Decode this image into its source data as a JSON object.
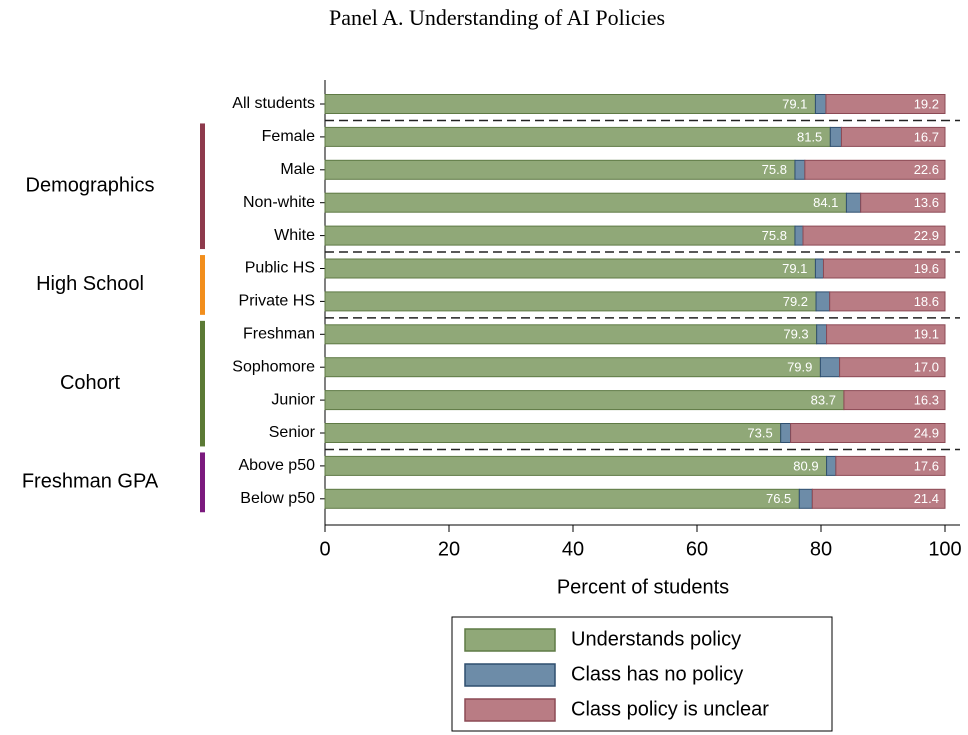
{
  "chart_data": {
    "type": "stacked-bar-horizontal",
    "title": "Panel A. Understanding of AI Policies",
    "xlabel": "Percent of students",
    "categories": [
      "All students",
      "Female",
      "Male",
      "Non-white",
      "White",
      "Public HS",
      "Private HS",
      "Freshman",
      "Sophomore",
      "Junior",
      "Senior",
      "Above p50",
      "Below p50"
    ],
    "groups": [
      {
        "name": "Demographics",
        "color": "#8e3a4c",
        "first": 1,
        "last": 4
      },
      {
        "name": "High School",
        "color": "#f28e1c",
        "first": 5,
        "last": 6
      },
      {
        "name": "Cohort",
        "color": "#5b7a35",
        "first": 7,
        "last": 10
      },
      {
        "name": "Freshman GPA",
        "color": "#7b1a7e",
        "first": 11,
        "last": 12
      }
    ],
    "series": [
      {
        "name": "Understands policy",
        "color": "#90a878",
        "stroke": "#5f7a45",
        "values": [
          79.1,
          81.5,
          75.8,
          84.1,
          75.8,
          79.1,
          79.2,
          79.3,
          79.9,
          83.7,
          73.5,
          80.9,
          76.5
        ],
        "value_labels": [
          "79.1",
          "81.5",
          "75.8",
          "84.1",
          "75.8",
          "79.1",
          "79.2",
          "79.3",
          "79.9",
          "83.7",
          "73.5",
          "80.9",
          "76.5"
        ]
      },
      {
        "name": "Class has no policy",
        "color": "#6d8ca8",
        "stroke": "#2f4f6f",
        "values": [
          1.7,
          1.8,
          1.6,
          2.3,
          1.3,
          1.3,
          2.2,
          1.6,
          3.1,
          0,
          1.6,
          1.5,
          2.1
        ]
      },
      {
        "name": "Class policy is unclear",
        "color": "#b97c84",
        "stroke": "#8c4a55",
        "values": [
          19.2,
          16.7,
          22.6,
          13.6,
          22.9,
          19.6,
          18.6,
          19.1,
          17,
          16.3,
          24.9,
          17.6,
          21.4
        ],
        "value_labels": [
          "19.2",
          "16.7",
          "22.6",
          "13.6",
          "22.9",
          "19.6",
          "18.6",
          "19.1",
          "17.0",
          "16.3",
          "24.9",
          "17.6",
          "21.4"
        ]
      }
    ],
    "xlim": [
      0,
      100
    ],
    "xticks": [
      0,
      20,
      40,
      60,
      80,
      100
    ],
    "legend": "bottom"
  }
}
